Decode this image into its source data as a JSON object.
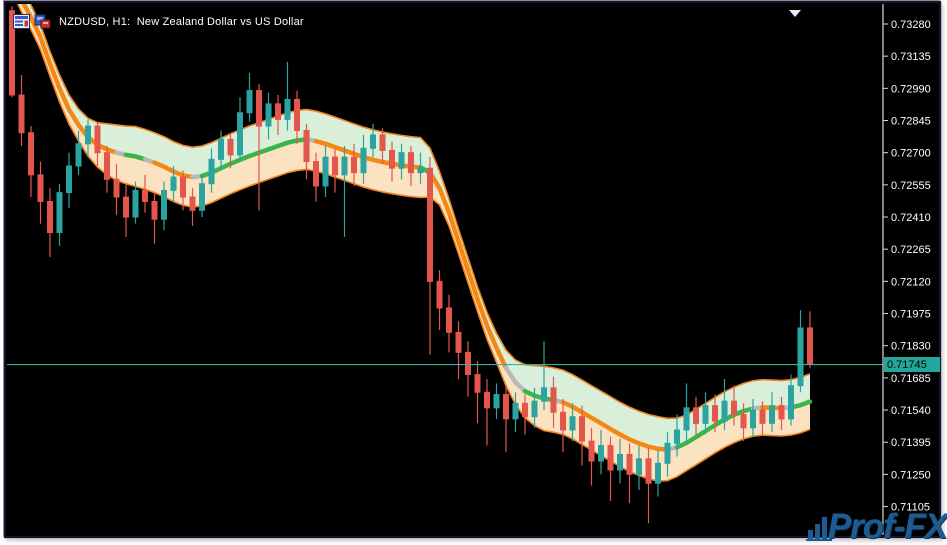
{
  "window": {
    "title": "NZDUSD, H1:  New Zealand Dollar vs US Dollar",
    "background": "#000000"
  },
  "title_icons": [
    {
      "name": "chart-list-icon"
    },
    {
      "name": "chart-window-icon"
    }
  ],
  "axis": {
    "side": "right",
    "ticks": [
      "0.73280",
      "0.73135",
      "0.72990",
      "0.72845",
      "0.72700",
      "0.72555",
      "0.72410",
      "0.72265",
      "0.72120",
      "0.71975",
      "0.71830",
      "0.71685",
      "0.71540",
      "0.71395",
      "0.71250",
      "0.71105"
    ],
    "step": 0.00145,
    "text_color": "#ffffff",
    "line_color": "#d8d8d8"
  },
  "current_price": {
    "value": "0.71745",
    "price": 0.71745,
    "line_color": "#2fb3a6",
    "marker_bg": "#23a79a",
    "marker_text_color": "#000000"
  },
  "scroll_marker": {
    "shape": "triangle-down",
    "color": "#e9e9fa"
  },
  "logo": {
    "text": "Prof-FX",
    "color": "#1d5c92"
  },
  "colors": {
    "candle_up": "#2aa3a1",
    "candle_down": "#e2564c",
    "band_fill_upper": "#d9efd9",
    "band_fill_lower": "#fbe3c1",
    "band_edge": "#ef8420",
    "mid_orange": "#f68712",
    "mid_green": "#3bb44a",
    "mid_gray": "#b9b9b9"
  },
  "chart_data": {
    "type": "candlestick",
    "symbol": "NZDUSD",
    "timeframe": "H1",
    "title": "New Zealand Dollar vs US Dollar",
    "price_scale": 1e-05,
    "axis_top_price": 0.7328,
    "axis_bottom_price": 0.71105,
    "last_price": 0.71745,
    "candles_ohlc_1e5": [
      [
        73340,
        73360,
        72950,
        72960
      ],
      [
        72960,
        73050,
        72730,
        72790
      ],
      [
        72790,
        72820,
        72500,
        72600
      ],
      [
        72600,
        72660,
        72380,
        72480
      ],
      [
        72480,
        72540,
        72230,
        72340
      ],
      [
        72340,
        72560,
        72280,
        72520
      ],
      [
        72520,
        72700,
        72450,
        72640
      ],
      [
        72640,
        72800,
        72600,
        72740
      ],
      [
        72740,
        72850,
        72680,
        72820
      ],
      [
        72820,
        72840,
        72640,
        72700
      ],
      [
        72700,
        72730,
        72520,
        72580
      ],
      [
        72580,
        72650,
        72420,
        72500
      ],
      [
        72500,
        72560,
        72320,
        72410
      ],
      [
        72410,
        72570,
        72380,
        72530
      ],
      [
        72530,
        72600,
        72430,
        72480
      ],
      [
        72480,
        72520,
        72290,
        72400
      ],
      [
        72400,
        72570,
        72350,
        72530
      ],
      [
        72530,
        72640,
        72480,
        72590
      ],
      [
        72590,
        72620,
        72440,
        72500
      ],
      [
        72500,
        72540,
        72370,
        72440
      ],
      [
        72440,
        72600,
        72410,
        72560
      ],
      [
        72560,
        72720,
        72520,
        72670
      ],
      [
        72670,
        72800,
        72620,
        72760
      ],
      [
        72760,
        72790,
        72630,
        72690
      ],
      [
        72690,
        72950,
        72660,
        72880
      ],
      [
        72880,
        73060,
        72840,
        72980
      ],
      [
        72980,
        73010,
        72440,
        72820
      ],
      [
        72820,
        72970,
        72760,
        72920
      ],
      [
        72920,
        72960,
        72780,
        72850
      ],
      [
        72850,
        73110,
        72800,
        72940
      ],
      [
        72940,
        72980,
        72740,
        72800
      ],
      [
        72800,
        72830,
        72580,
        72660
      ],
      [
        72660,
        72700,
        72480,
        72550
      ],
      [
        72550,
        72730,
        72500,
        72680
      ],
      [
        72680,
        72720,
        72520,
        72600
      ],
      [
        72600,
        72730,
        72320,
        72680
      ],
      [
        72680,
        72740,
        72550,
        72610
      ],
      [
        72610,
        72780,
        72560,
        72720
      ],
      [
        72720,
        72830,
        72680,
        72780
      ],
      [
        72780,
        72810,
        72650,
        72710
      ],
      [
        72710,
        72750,
        72570,
        72630
      ],
      [
        72630,
        72740,
        72580,
        72700
      ],
      [
        72700,
        72730,
        72550,
        72610
      ],
      [
        72610,
        72700,
        72560,
        72630
      ],
      [
        72630,
        72680,
        71790,
        72120
      ],
      [
        72120,
        72170,
        71900,
        72000
      ],
      [
        72000,
        72060,
        71800,
        71890
      ],
      [
        71890,
        71940,
        71680,
        71800
      ],
      [
        71800,
        71850,
        71600,
        71700
      ],
      [
        71700,
        71760,
        71480,
        71620
      ],
      [
        71620,
        71680,
        71380,
        71550
      ],
      [
        71550,
        71660,
        71500,
        71610
      ],
      [
        71610,
        71650,
        71350,
        71500
      ],
      [
        71500,
        71620,
        71440,
        71570
      ],
      [
        71570,
        71610,
        71430,
        71510
      ],
      [
        71510,
        71640,
        71460,
        71580
      ],
      [
        71580,
        71850,
        71540,
        71640
      ],
      [
        71640,
        71690,
        71460,
        71530
      ],
      [
        71530,
        71590,
        71350,
        71450
      ],
      [
        71450,
        71570,
        71400,
        71510
      ],
      [
        71510,
        71560,
        71290,
        71400
      ],
      [
        71400,
        71460,
        71200,
        71310
      ],
      [
        71310,
        71450,
        71250,
        71380
      ],
      [
        71380,
        71420,
        71130,
        71270
      ],
      [
        71270,
        71410,
        71210,
        71340
      ],
      [
        71340,
        71390,
        71120,
        71250
      ],
      [
        71250,
        71380,
        71180,
        71320
      ],
      [
        71320,
        71370,
        71030,
        71210
      ],
      [
        71210,
        71360,
        71150,
        71300
      ],
      [
        71300,
        71440,
        71240,
        71390
      ],
      [
        71390,
        71520,
        71330,
        71450
      ],
      [
        71450,
        71660,
        71400,
        71550
      ],
      [
        71550,
        71600,
        71420,
        71480
      ],
      [
        71480,
        71620,
        71430,
        71560
      ],
      [
        71560,
        71610,
        71440,
        71490
      ],
      [
        71490,
        71680,
        71450,
        71580
      ],
      [
        71580,
        71650,
        71470,
        71520
      ],
      [
        71520,
        71570,
        71400,
        71460
      ],
      [
        71460,
        71590,
        71420,
        71540
      ],
      [
        71540,
        71580,
        71430,
        71480
      ],
      [
        71480,
        71620,
        71440,
        71560
      ],
      [
        71560,
        71600,
        71450,
        71500
      ],
      [
        71500,
        71700,
        71470,
        71650
      ],
      [
        71650,
        71990,
        71620,
        71910
      ],
      [
        71910,
        71985,
        71730,
        71745
      ]
    ],
    "indicator": {
      "name": "MA channel (mid line + envelope band)",
      "mid_1e5": [
        73480,
        73390,
        73310,
        73220,
        73100,
        72990,
        72895,
        72825,
        72770,
        72735,
        72715,
        72700,
        72690,
        72683,
        72670,
        72655,
        72637,
        72615,
        72598,
        72590,
        72595,
        72610,
        72630,
        72650,
        72668,
        72685,
        72700,
        72715,
        72730,
        72745,
        72755,
        72760,
        72752,
        72740,
        72725,
        72710,
        72695,
        72680,
        72668,
        72658,
        72650,
        72643,
        72637,
        72633,
        72610,
        72540,
        72430,
        72300,
        72170,
        72040,
        71920,
        71820,
        71730,
        71665,
        71625,
        71605,
        71592,
        71585,
        71575,
        71555,
        71530,
        71505,
        71480,
        71455,
        71430,
        71408,
        71390,
        71375,
        71365,
        71362,
        71372,
        71392,
        71418,
        71445,
        71472,
        71497,
        71518,
        71535,
        71547,
        71552,
        71550,
        71548,
        71552,
        71562,
        71578
      ],
      "half_width_1e5": [
        55,
        55,
        55,
        55,
        55,
        60,
        65,
        72,
        85,
        100,
        115,
        125,
        130,
        135,
        135,
        135,
        135,
        135,
        135,
        135,
        135,
        135,
        135,
        135,
        135,
        135,
        135,
        135,
        135,
        135,
        135,
        135,
        135,
        135,
        135,
        135,
        135,
        135,
        135,
        135,
        135,
        135,
        135,
        135,
        110,
        75,
        60,
        55,
        55,
        55,
        60,
        65,
        80,
        100,
        120,
        135,
        145,
        145,
        145,
        145,
        145,
        145,
        145,
        145,
        145,
        145,
        145,
        145,
        145,
        140,
        132,
        125,
        125,
        125,
        125,
        125,
        125,
        125,
        125,
        125,
        125,
        125,
        125,
        125,
        125
      ],
      "mid_colors": "OOOOOOOOOOOxGGxOOOOxGGGGGGGGGGGxOOOOOOOOOOOGOOOOOOOOxxGGGxOOOOOOOOOOOxGGGGGGGGxOOxGGG"
    }
  }
}
